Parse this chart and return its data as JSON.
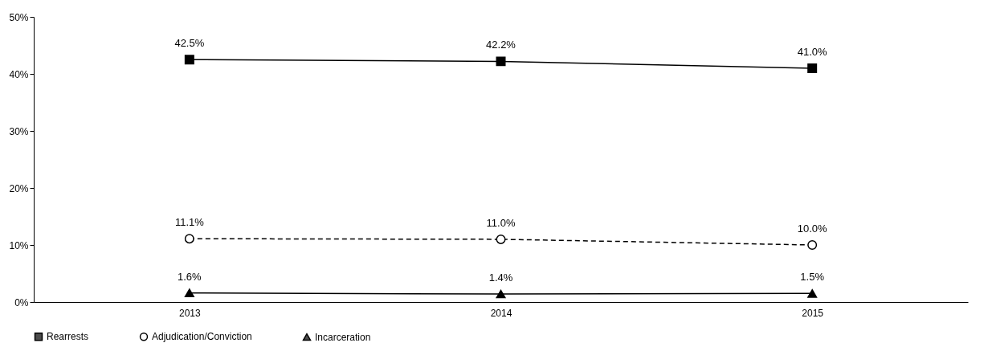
{
  "chart_data": {
    "type": "line",
    "categories": [
      "2013",
      "2014",
      "2015"
    ],
    "series": [
      {
        "name": "Rearrests",
        "color": "#000000",
        "values": [
          42.5,
          42.2,
          41.0
        ],
        "marker": "square",
        "line_style": "solid",
        "value_labels": [
          "42.5%",
          "42.2%",
          "41.0%"
        ]
      },
      {
        "name": "Adjudication/Conviction",
        "color": "#000000",
        "values": [
          11.1,
          11.0,
          10.0
        ],
        "marker": "circle",
        "line_style": "dashed",
        "value_labels": [
          "11.1%",
          "11.0%",
          "10.0%"
        ]
      },
      {
        "name": "Incarceration",
        "color": "#000000",
        "values": [
          1.6,
          1.4,
          1.5
        ],
        "marker": "triangle",
        "line_style": "solid",
        "value_labels": [
          "1.6%",
          "1.4%",
          "1.5%"
        ]
      }
    ],
    "ylim": [
      0,
      50
    ],
    "yticks": [
      {
        "value": 0,
        "label": "0%"
      },
      {
        "value": 10,
        "label": "10%"
      },
      {
        "value": 20,
        "label": "20%"
      },
      {
        "value": 30,
        "label": "30%"
      },
      {
        "value": 40,
        "label": "40%"
      },
      {
        "value": 50,
        "label": "50%"
      }
    ],
    "grid": false,
    "legend": "bottom"
  }
}
